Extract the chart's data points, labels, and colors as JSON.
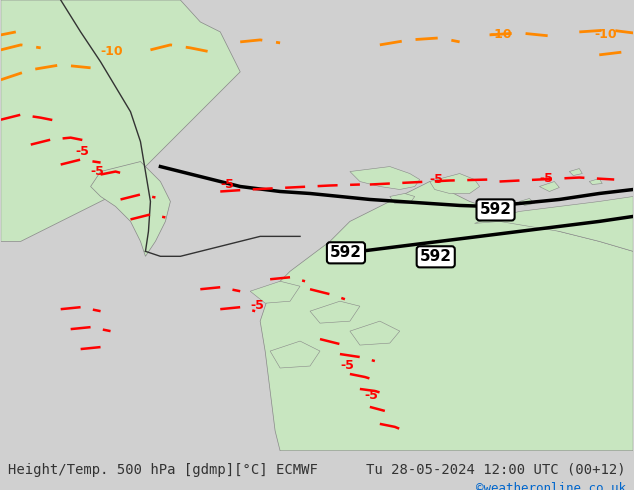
{
  "title_left": "Height/Temp. 500 hPa [gdmp][°C] ECMWF",
  "title_right": "Tu 28-05-2024 12:00 UTC (00+12)",
  "watermark": "©weatheronline.co.uk",
  "bg_color": "#d0d0d0",
  "land_color_light": "#c8e6c0",
  "land_color_mid": "#b0d8a0",
  "ocean_color": "#e8e8e8",
  "contour_color_orange": "#ff8800",
  "contour_color_red": "#ff0000",
  "contour_color_black": "#000000",
  "label_592": "592",
  "label_neg5": "-5",
  "label_neg10": "-10",
  "figsize": [
    6.34,
    4.9
  ],
  "dpi": 100,
  "bottom_bar_color": "#f0f0f0",
  "bottom_text_color": "#333333",
  "watermark_color": "#0066cc"
}
